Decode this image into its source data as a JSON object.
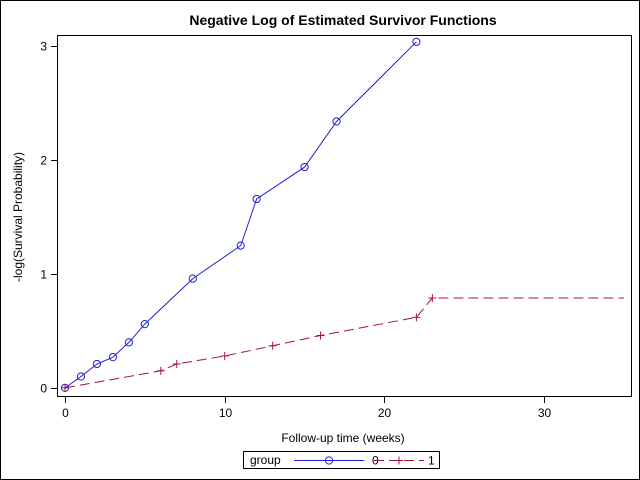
{
  "chart_data": {
    "type": "line",
    "title": "Negative Log of Estimated Survivor Functions",
    "xlabel": "Follow-up time (weeks)",
    "ylabel": "-log(Survival Probability)",
    "xlim": [
      -0.5,
      35.5
    ],
    "ylim": [
      -0.08,
      3.1
    ],
    "x_ticks": [
      0,
      10,
      20,
      30
    ],
    "y_ticks": [
      0,
      1,
      2,
      3
    ],
    "grid": false,
    "legend": {
      "title": "group",
      "placement": "bottom-center"
    },
    "series": [
      {
        "name": "0",
        "color": "#2020d0",
        "line_style": "solid",
        "marker": "circle",
        "x": [
          0,
          1,
          2,
          3,
          4,
          5,
          8,
          11,
          12,
          15,
          17,
          22
        ],
        "y": [
          0,
          0.1,
          0.21,
          0.27,
          0.4,
          0.56,
          0.96,
          1.25,
          1.66,
          1.94,
          2.34,
          3.04
        ]
      },
      {
        "name": "1",
        "color": "#a01830",
        "line_style": "dashed",
        "marker": "plus",
        "x": [
          0,
          6,
          7,
          10,
          13,
          16,
          22,
          23,
          35
        ],
        "y": [
          0,
          0.15,
          0.21,
          0.28,
          0.37,
          0.46,
          0.62,
          0.79,
          0.79
        ]
      }
    ]
  }
}
